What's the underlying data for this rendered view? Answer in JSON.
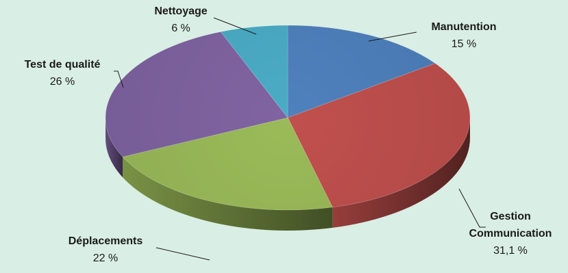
{
  "chart_data": {
    "type": "pie",
    "style": "3d",
    "slices": [
      {
        "label_lines": [
          "Manutention"
        ],
        "value_text": "15 %",
        "value": 15,
        "color": "#4f81bd"
      },
      {
        "label_lines": [
          "Gestion",
          "Communication"
        ],
        "value_text": "31,1 %",
        "value": 31.1,
        "color": "#c0504d"
      },
      {
        "label_lines": [
          "Déplacements"
        ],
        "value_text": "22 %",
        "value": 22,
        "color": "#9bbb59"
      },
      {
        "label_lines": [
          "Test de qualité"
        ],
        "value_text": "26 %",
        "value": 26,
        "color": "#8064a2"
      },
      {
        "label_lines": [
          "Nettoyage"
        ],
        "value_text": "6 %",
        "value": 6,
        "color": "#4bacc6"
      }
    ]
  }
}
